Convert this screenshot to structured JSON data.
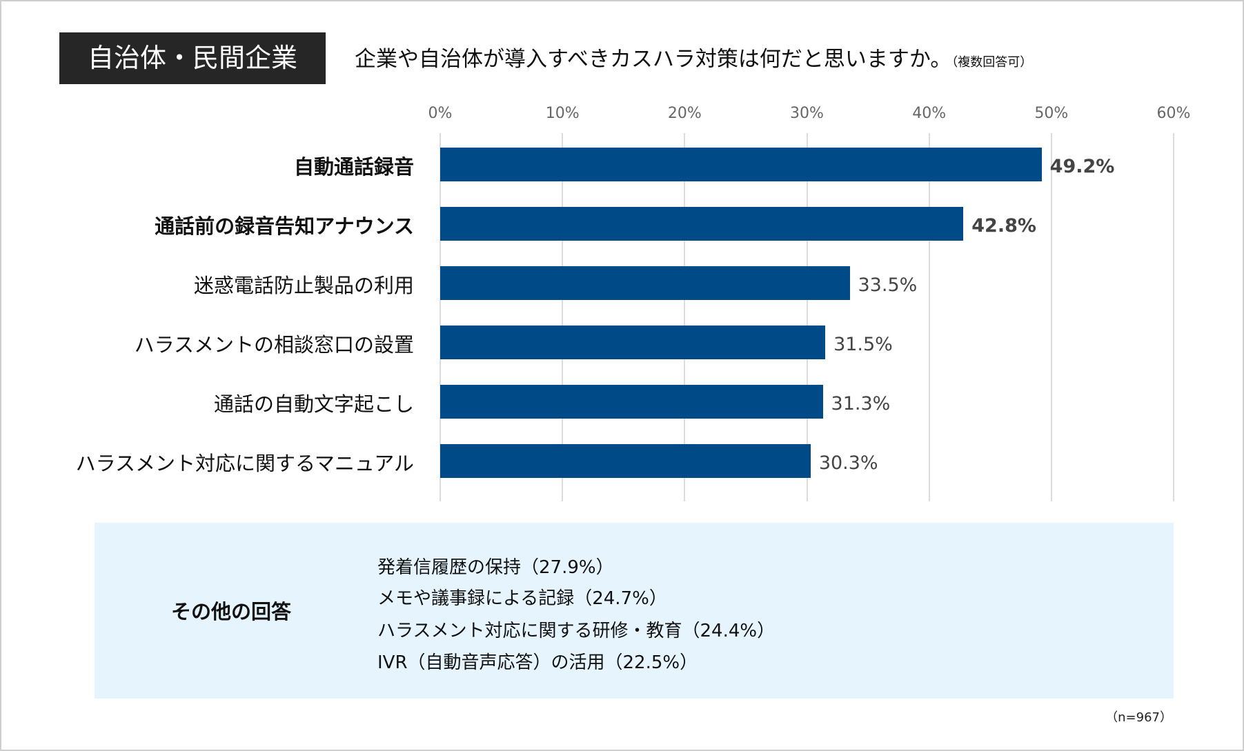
{
  "header": {
    "tag": "自治体・民間企業",
    "question": "企業や自治体が導入すべきカスハラ対策は何だと思いますか。",
    "note": "（複数回答可）"
  },
  "chart_data": {
    "type": "bar",
    "orientation": "horizontal",
    "categories": [
      "自動通話録音",
      "通話前の録音告知アナウンス",
      "迷惑電話防止製品の利用",
      "ハラスメントの相談窓口の設置",
      "通話の自動文字起こし",
      "ハラスメント対応に関するマニュアル"
    ],
    "values": [
      49.2,
      42.8,
      33.5,
      31.5,
      31.3,
      30.3
    ],
    "value_labels": [
      "49.2%",
      "42.8%",
      "33.5%",
      "31.5%",
      "31.3%",
      "30.3%"
    ],
    "highlighted": [
      true,
      true,
      false,
      false,
      false,
      false
    ],
    "xlim": [
      0,
      60
    ],
    "tick_labels": [
      "0%",
      "10%",
      "20%",
      "30%",
      "40%",
      "50%",
      "60%"
    ],
    "grid": true,
    "bar_color": "#004b87",
    "axis_position": "top"
  },
  "other": {
    "heading": "その他の回答",
    "items": [
      "発着信履歴の保持（27.9%）",
      "メモや議事録による記録（24.7%）",
      "ハラスメント対応に関する研修・教育（24.4%）",
      "IVR（自動音声応答）の活用（22.5%）"
    ],
    "background": "#e6f5fd"
  },
  "sample": "（n=967）"
}
